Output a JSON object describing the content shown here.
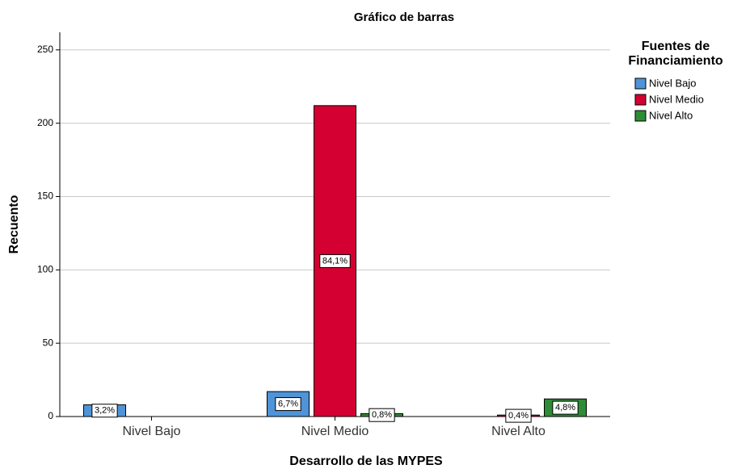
{
  "chart_data": {
    "type": "bar",
    "title": "Gráfico de barras",
    "x_label": "Desarrollo de las MYPES",
    "y_label": "Recuento",
    "legend_title": [
      "Fuentes de",
      "Financiamiento"
    ],
    "legend_position": "right",
    "categories": [
      "Nivel Bajo",
      "Nivel Medio",
      "Nivel Alto"
    ],
    "series": [
      {
        "name": "Nivel Bajo",
        "color": "#4f94d8",
        "values": [
          8,
          17,
          null
        ],
        "labels": [
          "3,2%",
          "6,7%",
          null
        ]
      },
      {
        "name": "Nivel Medio",
        "color": "#d30031",
        "values": [
          null,
          212,
          1
        ],
        "labels": [
          null,
          "84,1%",
          "0,4%"
        ]
      },
      {
        "name": "Nivel Alto",
        "color": "#2e8b36",
        "values": [
          null,
          2,
          12
        ],
        "labels": [
          null,
          "0,8%",
          "4,8%"
        ]
      }
    ],
    "ylim": [
      0,
      262
    ],
    "yticks": [
      0,
      50,
      100,
      150,
      200,
      250
    ],
    "grid": true
  }
}
